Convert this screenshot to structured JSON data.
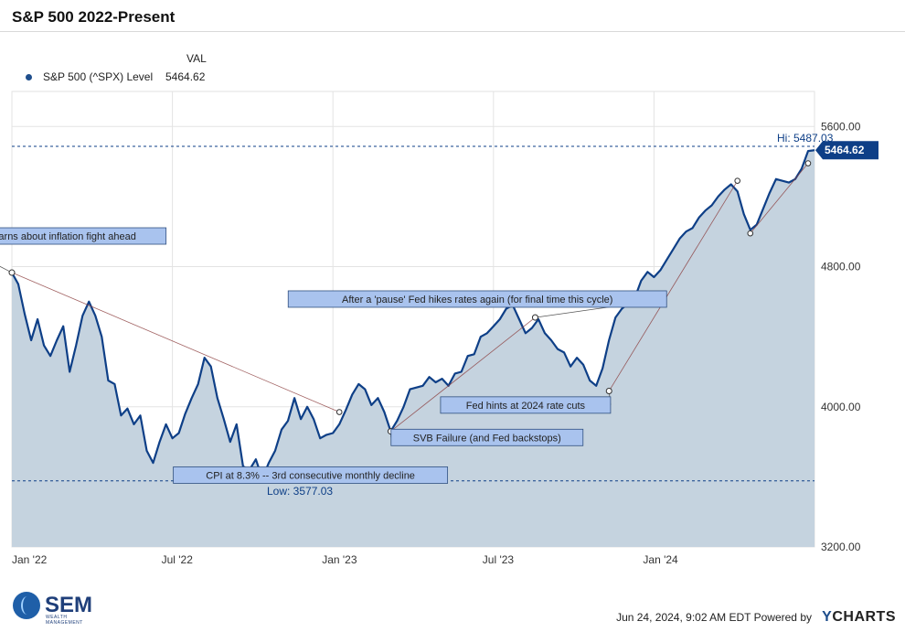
{
  "header": {
    "title": "S&P 500 2022-Present"
  },
  "legend": {
    "column_header": "VAL",
    "series_name": "S&P 500 (^SPX) Level",
    "series_value": "5464.62"
  },
  "colors": {
    "line": "#0e3f87",
    "fill": "#c5d3df",
    "accent": "#1f4e8c",
    "annotation_fill": "#a9c3ee"
  },
  "chart_data": {
    "type": "area",
    "title": "S&P 500 2022-Present",
    "xlabel": "",
    "ylabel": "",
    "ylim": [
      3200,
      5800
    ],
    "x_tick_labels": [
      "Jan '22",
      "Jul '22",
      "Jan '23",
      "Jul '23",
      "Jan '24"
    ],
    "y_tick_values": [
      3200,
      4000,
      4800,
      5600
    ],
    "y_tick_labels": [
      "3200.00",
      "4000.00",
      "4800.00",
      "5600.00"
    ],
    "hi": {
      "label": "Hi: 5487.03",
      "value": 5487.03
    },
    "low": {
      "label": "Low: 3577.03",
      "value": 3577.03
    },
    "current_label": "5464.62",
    "series": [
      {
        "name": "S&P 500 (^SPX) Level",
        "points": [
          [
            2022.0,
            4766
          ],
          [
            2022.02,
            4700
          ],
          [
            2022.04,
            4530
          ],
          [
            2022.06,
            4380
          ],
          [
            2022.08,
            4500
          ],
          [
            2022.1,
            4350
          ],
          [
            2022.12,
            4290
          ],
          [
            2022.14,
            4380
          ],
          [
            2022.16,
            4460
          ],
          [
            2022.18,
            4200
          ],
          [
            2022.2,
            4350
          ],
          [
            2022.22,
            4520
          ],
          [
            2022.24,
            4600
          ],
          [
            2022.26,
            4520
          ],
          [
            2022.28,
            4400
          ],
          [
            2022.3,
            4150
          ],
          [
            2022.32,
            4130
          ],
          [
            2022.34,
            3950
          ],
          [
            2022.36,
            3990
          ],
          [
            2022.38,
            3900
          ],
          [
            2022.4,
            3950
          ],
          [
            2022.42,
            3750
          ],
          [
            2022.44,
            3680
          ],
          [
            2022.46,
            3800
          ],
          [
            2022.48,
            3900
          ],
          [
            2022.5,
            3820
          ],
          [
            2022.52,
            3850
          ],
          [
            2022.54,
            3960
          ],
          [
            2022.56,
            4050
          ],
          [
            2022.58,
            4130
          ],
          [
            2022.6,
            4280
          ],
          [
            2022.62,
            4230
          ],
          [
            2022.64,
            4050
          ],
          [
            2022.66,
            3930
          ],
          [
            2022.68,
            3800
          ],
          [
            2022.7,
            3900
          ],
          [
            2022.72,
            3660
          ],
          [
            2022.74,
            3640
          ],
          [
            2022.76,
            3700
          ],
          [
            2022.78,
            3590
          ],
          [
            2022.8,
            3680
          ],
          [
            2022.82,
            3750
          ],
          [
            2022.84,
            3870
          ],
          [
            2022.86,
            3920
          ],
          [
            2022.88,
            4050
          ],
          [
            2022.9,
            3930
          ],
          [
            2022.92,
            4000
          ],
          [
            2022.94,
            3930
          ],
          [
            2022.96,
            3820
          ],
          [
            2022.98,
            3840
          ],
          [
            2023.0,
            3850
          ],
          [
            2023.02,
            3900
          ],
          [
            2023.04,
            3980
          ],
          [
            2023.06,
            4070
          ],
          [
            2023.08,
            4130
          ],
          [
            2023.1,
            4100
          ],
          [
            2023.12,
            4010
          ],
          [
            2023.14,
            4050
          ],
          [
            2023.16,
            3970
          ],
          [
            2023.18,
            3860
          ],
          [
            2023.2,
            3920
          ],
          [
            2023.22,
            4000
          ],
          [
            2023.24,
            4100
          ],
          [
            2023.26,
            4110
          ],
          [
            2023.28,
            4120
          ],
          [
            2023.3,
            4170
          ],
          [
            2023.32,
            4140
          ],
          [
            2023.34,
            4160
          ],
          [
            2023.36,
            4120
          ],
          [
            2023.38,
            4190
          ],
          [
            2023.4,
            4200
          ],
          [
            2023.42,
            4290
          ],
          [
            2023.44,
            4300
          ],
          [
            2023.46,
            4400
          ],
          [
            2023.48,
            4420
          ],
          [
            2023.5,
            4460
          ],
          [
            2023.52,
            4500
          ],
          [
            2023.54,
            4560
          ],
          [
            2023.56,
            4580
          ],
          [
            2023.58,
            4500
          ],
          [
            2023.6,
            4420
          ],
          [
            2023.62,
            4450
          ],
          [
            2023.64,
            4500
          ],
          [
            2023.66,
            4420
          ],
          [
            2023.68,
            4380
          ],
          [
            2023.7,
            4330
          ],
          [
            2023.72,
            4310
          ],
          [
            2023.74,
            4230
          ],
          [
            2023.76,
            4280
          ],
          [
            2023.78,
            4240
          ],
          [
            2023.8,
            4150
          ],
          [
            2023.82,
            4120
          ],
          [
            2023.84,
            4220
          ],
          [
            2023.86,
            4380
          ],
          [
            2023.88,
            4510
          ],
          [
            2023.9,
            4560
          ],
          [
            2023.92,
            4590
          ],
          [
            2023.94,
            4620
          ],
          [
            2023.96,
            4720
          ],
          [
            2023.98,
            4770
          ],
          [
            2024.0,
            4740
          ],
          [
            2024.02,
            4780
          ],
          [
            2024.04,
            4840
          ],
          [
            2024.06,
            4900
          ],
          [
            2024.08,
            4960
          ],
          [
            2024.1,
            5000
          ],
          [
            2024.12,
            5020
          ],
          [
            2024.14,
            5080
          ],
          [
            2024.16,
            5120
          ],
          [
            2024.18,
            5150
          ],
          [
            2024.2,
            5200
          ],
          [
            2024.22,
            5240
          ],
          [
            2024.24,
            5270
          ],
          [
            2024.26,
            5230
          ],
          [
            2024.28,
            5100
          ],
          [
            2024.3,
            5010
          ],
          [
            2024.32,
            5040
          ],
          [
            2024.34,
            5130
          ],
          [
            2024.36,
            5220
          ],
          [
            2024.38,
            5300
          ],
          [
            2024.4,
            5290
          ],
          [
            2024.42,
            5280
          ],
          [
            2024.44,
            5300
          ],
          [
            2024.46,
            5360
          ],
          [
            2024.48,
            5460
          ],
          [
            2024.5,
            5464.62
          ]
        ]
      }
    ],
    "annotations": [
      {
        "text": "Fed warns about inflation fight ahead",
        "x": 2022.0,
        "y": 4766,
        "tx": 2022.13,
        "ty": 4975
      },
      {
        "text": "After a 'pause' Fed hikes rates again (for final time this cycle)",
        "x": 2023.63,
        "y": 4510,
        "tx": 2023.45,
        "ty": 4615
      },
      {
        "text": "Fed hints at 2024 rate cuts",
        "x": 2023.86,
        "y": 4090,
        "tx": 2023.6,
        "ty": 4010
      },
      {
        "text": "SVB Failure (and Fed backstops)",
        "x": 2023.18,
        "y": 3860,
        "tx": 2023.48,
        "ty": 3825
      },
      {
        "text": "CPI at 8.3% -- 3rd consecutive monthly decline",
        "x": 2022.79,
        "y": 3600,
        "tx": 2022.93,
        "ty": 3610
      }
    ],
    "trendlines": [
      {
        "from": [
          2022.0,
          4766
        ],
        "to": [
          2023.02,
          3970
        ]
      },
      {
        "from": [
          2023.18,
          3860
        ],
        "to": [
          2023.63,
          4510
        ]
      },
      {
        "from": [
          2023.86,
          4090
        ],
        "to": [
          2024.26,
          5290
        ]
      },
      {
        "from": [
          2024.3,
          4990
        ],
        "to": [
          2024.48,
          5390
        ]
      }
    ]
  },
  "footer": {
    "date": "Jun 24, 2024, 9:02 AM EDT Powered by",
    "brand_y": "Y",
    "brand_rest": "CHARTS"
  },
  "logo": {
    "word": "SEM",
    "subtitle": "WEALTH MANAGEMENT"
  }
}
